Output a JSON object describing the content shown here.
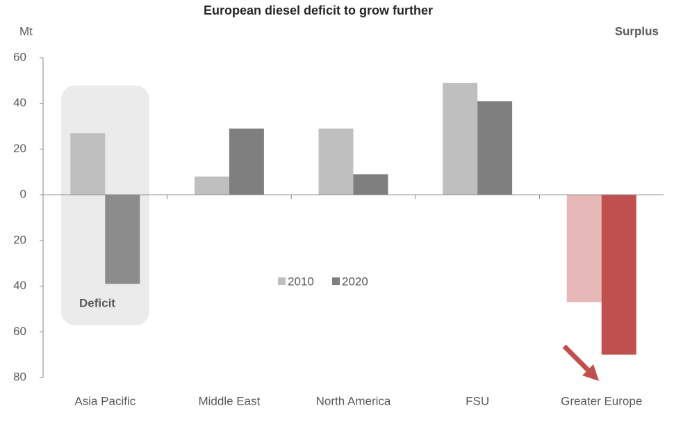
{
  "chart_data": {
    "type": "bar",
    "title": "European diesel deficit to grow further",
    "y_label": "Mt",
    "annotations": [
      "Surplus",
      "Deficit"
    ],
    "categories": [
      "Asia Pacific",
      "Middle East",
      "North America",
      "FSU",
      "Greater Europe"
    ],
    "series": [
      {
        "name": "2010",
        "color": "#bfbfbf",
        "colors": [
          "#bfbfbf",
          "#bfbfbf",
          "#bfbfbf",
          "#bfbfbf",
          "#e6b9b8"
        ],
        "values": [
          27,
          8,
          29,
          49,
          -47
        ]
      },
      {
        "name": "2020",
        "color": "#7f7f7f",
        "colors": [
          "#8c8c8c",
          "#7f7f7f",
          "#7f7f7f",
          "#7f7f7f",
          "#c0504d"
        ],
        "values": [
          -39,
          29,
          9,
          41,
          -70
        ]
      }
    ],
    "ylim": [
      -80,
      60
    ],
    "yticks": [
      {
        "value": -80,
        "label": "80"
      },
      {
        "value": -60,
        "label": "60"
      },
      {
        "value": -40,
        "label": "40"
      },
      {
        "value": -20,
        "label": "20"
      },
      0,
      20,
      40,
      60
    ],
    "grid": false
  }
}
